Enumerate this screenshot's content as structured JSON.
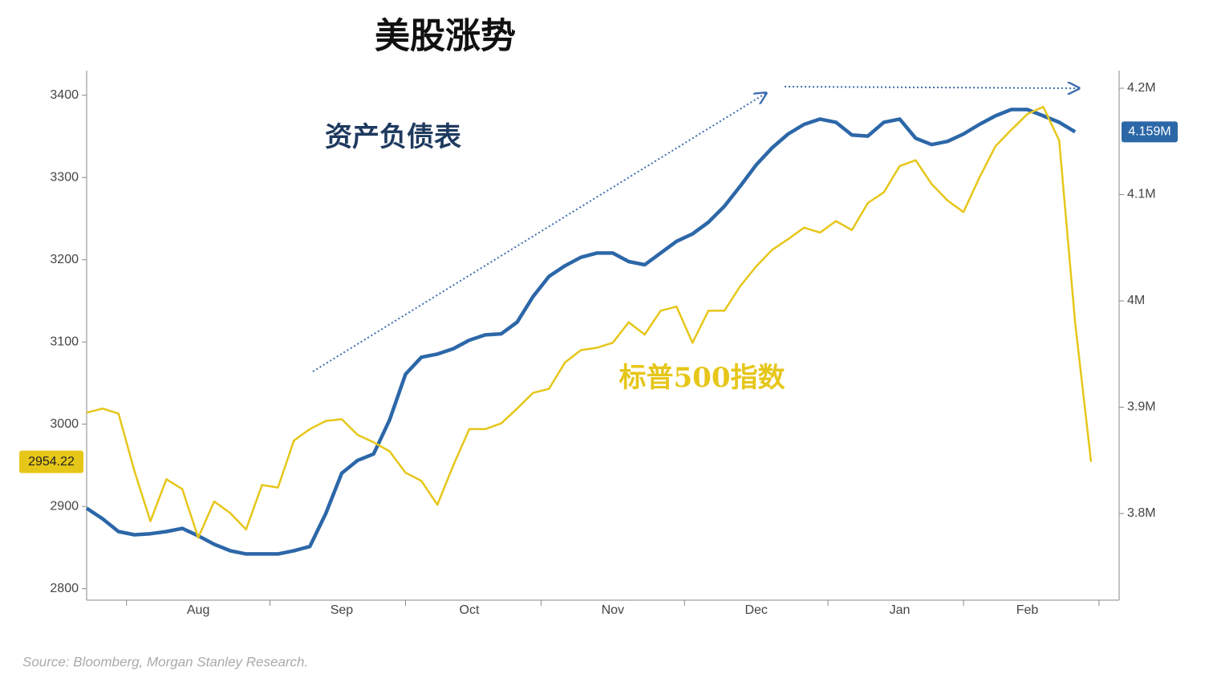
{
  "chart_data": {
    "type": "line",
    "title": "美股涨势",
    "source": "Source: Bloomberg, Morgan Stanley Research.",
    "categories": [
      null,
      null,
      null,
      null,
      null,
      null,
      null,
      "Aug",
      null,
      null,
      null,
      null,
      null,
      null,
      null,
      null,
      "Sep",
      null,
      null,
      null,
      null,
      null,
      null,
      null,
      "Oct",
      null,
      null,
      null,
      null,
      null,
      null,
      null,
      null,
      "Nov",
      null,
      null,
      null,
      null,
      null,
      null,
      null,
      null,
      "Dec",
      null,
      null,
      null,
      null,
      null,
      null,
      null,
      null,
      "Jan",
      null,
      null,
      null,
      null,
      null,
      null,
      null,
      "Feb",
      null,
      null,
      null,
      null
    ],
    "ylim": [
      2786,
      3430
    ],
    "yticks": [
      2800,
      2900,
      3000,
      3100,
      3200,
      3300,
      3400
    ],
    "y2lim": [
      3718500,
      4216600
    ],
    "y2ticks": [
      {
        "value": 3800000,
        "label": "3.8M"
      },
      {
        "value": 3900000,
        "label": "3.9M"
      },
      {
        "value": 4000000,
        "label": "4M"
      },
      {
        "value": 4100000,
        "label": "4.1M"
      },
      {
        "value": 4200000,
        "label": "4.2M"
      }
    ],
    "series": [
      {
        "name": "资产负债表",
        "color": "#2c67a8",
        "axis": "y2",
        "values": [
          3805000,
          3795000,
          3783000,
          3780000,
          3781000,
          3783000,
          3786000,
          3779000,
          3771000,
          3765000,
          3762000,
          3762000,
          3762000,
          3765000,
          3769000,
          3800000,
          3838000,
          3850000,
          3856000,
          3888000,
          3931000,
          3947000,
          3950000,
          3955000,
          3963000,
          3968000,
          3969000,
          3980000,
          4004000,
          4023000,
          4033000,
          4041000,
          4045000,
          4045000,
          4037000,
          4034000,
          4045000,
          4056000,
          4063000,
          4074000,
          4089000,
          4108000,
          4128000,
          4144000,
          4157000,
          4166000,
          4171000,
          4168000,
          4156000,
          4155000,
          4168000,
          4171000,
          4153000,
          4147000,
          4150000,
          4157000,
          4166000,
          4174000,
          4180000,
          4180000,
          4174000,
          4168000,
          4159000,
          null
        ],
        "value_labels": [
          null,
          null,
          null,
          null,
          null,
          null,
          null,
          null,
          null,
          null,
          null,
          null,
          null,
          null,
          null,
          null,
          null,
          null,
          null,
          null,
          null,
          null,
          null,
          null,
          null,
          null,
          null,
          null,
          null,
          null,
          null,
          null,
          null,
          null,
          null,
          null,
          null,
          null,
          null,
          null,
          null,
          null,
          null,
          null,
          null,
          null,
          null,
          null,
          null,
          null,
          null,
          null,
          null,
          null,
          null,
          null,
          null,
          null,
          null,
          null,
          null,
          null,
          "4.159M",
          null
        ]
      },
      {
        "name": "标普500指数",
        "color": "#e6c619",
        "values": [
          3014,
          3019,
          3013,
          2943,
          2882,
          2933,
          2921,
          2862,
          2906,
          2892,
          2872,
          2926,
          2923,
          2980,
          2994,
          3004,
          3006,
          2987,
          2978,
          2967,
          2941,
          2931,
          2902,
          2950,
          2994,
          2994,
          3001,
          3019,
          3038,
          3043,
          3075,
          3090,
          3093,
          3099,
          3124,
          3109,
          3138,
          3143,
          3099,
          3138,
          3138,
          3168,
          3192,
          3212,
          3225,
          3239,
          3233,
          3247,
          3236,
          3269,
          3282,
          3314,
          3321,
          3292,
          3272,
          3258,
          3300,
          3338,
          3358,
          3377,
          3386,
          3345,
          3124,
          2954.22
        ]
      }
    ],
    "grid": false
  }
}
